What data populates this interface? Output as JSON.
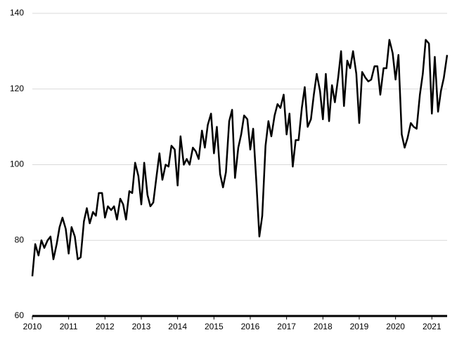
{
  "chart_data": {
    "type": "line",
    "x": [
      2010,
      2010.08,
      2010.17,
      2010.25,
      2010.33,
      2010.42,
      2010.5,
      2010.58,
      2010.67,
      2010.75,
      2010.83,
      2010.92,
      2011,
      2011.08,
      2011.17,
      2011.25,
      2011.33,
      2011.42,
      2011.5,
      2011.58,
      2011.67,
      2011.75,
      2011.83,
      2011.92,
      2012,
      2012.08,
      2012.17,
      2012.25,
      2012.33,
      2012.42,
      2012.5,
      2012.58,
      2012.67,
      2012.75,
      2012.83,
      2012.92,
      2013,
      2013.08,
      2013.17,
      2013.25,
      2013.33,
      2013.42,
      2013.5,
      2013.58,
      2013.67,
      2013.75,
      2013.83,
      2013.92,
      2014,
      2014.08,
      2014.17,
      2014.25,
      2014.33,
      2014.42,
      2014.5,
      2014.58,
      2014.67,
      2014.75,
      2014.83,
      2014.92,
      2015,
      2015.08,
      2015.17,
      2015.25,
      2015.33,
      2015.42,
      2015.5,
      2015.58,
      2015.67,
      2015.75,
      2015.83,
      2015.92,
      2016,
      2016.08,
      2016.17,
      2016.25,
      2016.33,
      2016.42,
      2016.5,
      2016.58,
      2016.67,
      2016.75,
      2016.83,
      2016.92,
      2017,
      2017.08,
      2017.17,
      2017.25,
      2017.33,
      2017.42,
      2017.5,
      2017.58,
      2017.67,
      2017.75,
      2017.83,
      2017.92,
      2018,
      2018.08,
      2018.17,
      2018.25,
      2018.33,
      2018.42,
      2018.5,
      2018.58,
      2018.67,
      2018.75,
      2018.83,
      2018.92,
      2019,
      2019.08,
      2019.17,
      2019.25,
      2019.33,
      2019.42,
      2019.5,
      2019.58,
      2019.67,
      2019.75,
      2019.83,
      2019.92,
      2020,
      2020.08,
      2020.17,
      2020.25,
      2020.33,
      2020.42,
      2020.5,
      2020.58,
      2020.67,
      2020.75,
      2020.83,
      2020.92,
      2021,
      2021.08,
      2021.17,
      2021.25,
      2021.33,
      2021.42
    ],
    "values": [
      70.5,
      79,
      76,
      80,
      78,
      80,
      81,
      75,
      79,
      83.5,
      86,
      83,
      76.5,
      83.5,
      81,
      75,
      75.5,
      85,
      88.5,
      84.5,
      87.5,
      86.5,
      92.5,
      92.5,
      86,
      89,
      88,
      89,
      85.5,
      91,
      89.5,
      85.5,
      93,
      92.5,
      100.5,
      97,
      89.5,
      100.5,
      92,
      89,
      90,
      97,
      103,
      96,
      100,
      99.5,
      105,
      104,
      94.5,
      107.5,
      100,
      101.5,
      100,
      104.5,
      103.5,
      101.5,
      109,
      104.5,
      110.5,
      113.5,
      103,
      110,
      97.5,
      94,
      98,
      111.5,
      114.5,
      96.5,
      104.5,
      108,
      113,
      112,
      104,
      109.5,
      95,
      81,
      86.5,
      105,
      111.5,
      107.5,
      113,
      116,
      115,
      118.5,
      108,
      113.5,
      99.5,
      106.5,
      106.5,
      115,
      120.5,
      110,
      112,
      118.5,
      124,
      119.5,
      112,
      124,
      111.5,
      121,
      116.5,
      123,
      130,
      115.5,
      127.5,
      125.5,
      130,
      124,
      111,
      124.5,
      123,
      122,
      122.5,
      126,
      126,
      118.5,
      125.5,
      125.5,
      133,
      129.5,
      122.5,
      129,
      108,
      104.5,
      107,
      111,
      110,
      109.5,
      118.5,
      124,
      133,
      132,
      113.5,
      128.5,
      114,
      119.5,
      123,
      129
    ],
    "color": "#000000",
    "xlim": [
      2010,
      2021.42
    ],
    "xticks": [
      2010,
      2011,
      2012,
      2013,
      2014,
      2015,
      2016,
      2017,
      2018,
      2019,
      2020,
      2021
    ],
    "ylim": [
      60,
      140
    ],
    "yticks": [
      60,
      80,
      100,
      120,
      140
    ],
    "grid": true
  }
}
